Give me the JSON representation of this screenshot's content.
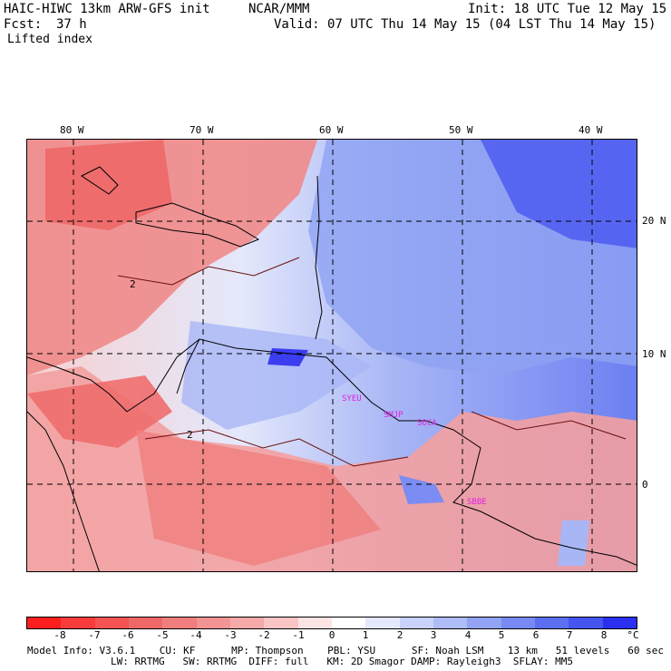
{
  "header": {
    "model": "HAIC-HIWC 13km ARW-GFS init",
    "org": "NCAR/MMM",
    "init": "Init: 18 UTC Tue 12 May 15",
    "fcst_label": "Fcst:",
    "fcst_value": "37 h",
    "valid": "Valid: 07 UTC Thu 14 May 15 (04 LST Thu 14 May 15)",
    "field": "Lifted index"
  },
  "map": {
    "lon_labels": [
      "80 W",
      "70 W",
      "60 W",
      "50 W",
      "40 W"
    ],
    "lat_labels": [
      "20 N",
      "10 N",
      "0"
    ],
    "station_labels": [
      "SYEU",
      "SMJP",
      "SOCA",
      "SBBE"
    ],
    "contour_labels": [
      "2",
      "2"
    ],
    "colors": {
      "negative_strong": "#ff2020",
      "negative_mid": "#f06a6a",
      "negative_light": "#f7b8b8",
      "neutral": "#ffffff",
      "positive_light": "#c8d4fa",
      "positive_mid": "#8fa2f2",
      "positive_strong": "#3a3df0",
      "coast": "#000000",
      "station": "#e020e0"
    }
  },
  "colorbar": {
    "labels": [
      "-8",
      "-7",
      "-6",
      "-5",
      "-4",
      "-3",
      "-2",
      "-1",
      "0",
      "1",
      "2",
      "3",
      "4",
      "5",
      "6",
      "7",
      "8"
    ],
    "unit": "°C",
    "colors": [
      "#ff1e1e",
      "#f83c3c",
      "#f35353",
      "#ef6868",
      "#f07e7e",
      "#f39494",
      "#f6a9a9",
      "#f9c5c5",
      "#fce4e4",
      "#ffffff",
      "#e3e8fc",
      "#c9d2fa",
      "#aebcf7",
      "#92a3f5",
      "#7889f3",
      "#5c6ff1",
      "#4455f0",
      "#2a2ff0"
    ]
  },
  "info": {
    "line1": "Model Info: V3.6.1    CU: KF      MP: Thompson    PBL: YSU      SF: Noah LSM    13 km   51 levels   60 sec",
    "line2": "LW: RRTMG   SW: RRTMG  DIFF: full   KM: 2D Smagor DAMP: Rayleigh3  SFLAY: MM5"
  }
}
